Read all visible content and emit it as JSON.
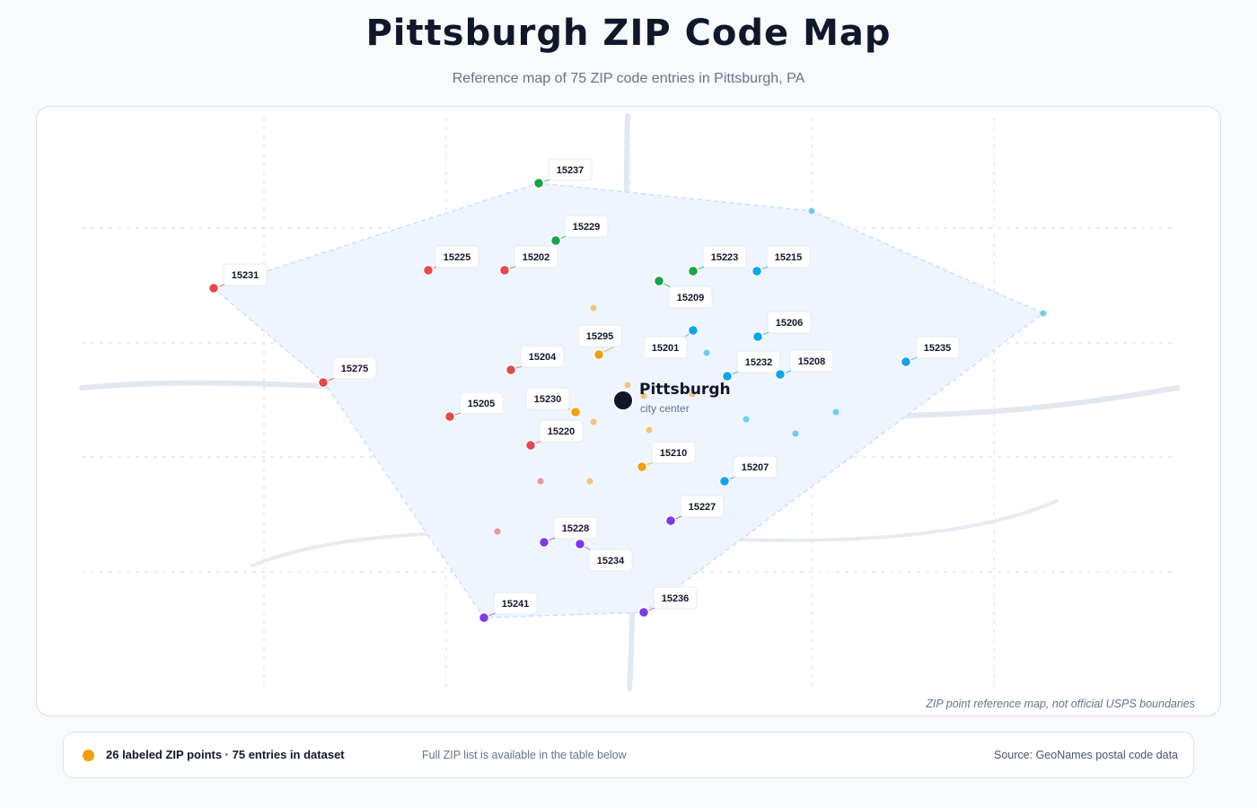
{
  "header": {
    "title": "Pittsburgh ZIP Code Map",
    "subtitle": "Reference map of 75 ZIP code entries in Pittsburgh, PA"
  },
  "map": {
    "disclaimer": "ZIP point reference map, not official USPS boundaries",
    "city": {
      "name": "Pittsburgh",
      "sublabel": "city center"
    },
    "colors": {
      "red": "#e5484d",
      "green": "#16a34a",
      "blue": "#0ea5e9",
      "orange": "#f59e0b",
      "purple": "#7c3aed",
      "region_fill": "#eef5fe",
      "region_stroke": "#bfdbfe",
      "road": "#e2e8f0",
      "grid": "#dbe1ea",
      "city_center": "#0f172a"
    },
    "labeled_points": [
      {
        "zip": "15237",
        "color": "green"
      },
      {
        "zip": "15229",
        "color": "green"
      },
      {
        "zip": "15225",
        "color": "red"
      },
      {
        "zip": "15202",
        "color": "red"
      },
      {
        "zip": "15223",
        "color": "green"
      },
      {
        "zip": "15215",
        "color": "blue"
      },
      {
        "zip": "15231",
        "color": "red"
      },
      {
        "zip": "15209",
        "color": "green"
      },
      {
        "zip": "15206",
        "color": "blue"
      },
      {
        "zip": "15295",
        "color": "orange"
      },
      {
        "zip": "15201",
        "color": "blue"
      },
      {
        "zip": "15235",
        "color": "blue"
      },
      {
        "zip": "15204",
        "color": "red"
      },
      {
        "zip": "15232",
        "color": "blue"
      },
      {
        "zip": "15208",
        "color": "blue"
      },
      {
        "zip": "15275",
        "color": "red"
      },
      {
        "zip": "15230",
        "color": "orange"
      },
      {
        "zip": "15205",
        "color": "red"
      },
      {
        "zip": "15220",
        "color": "red"
      },
      {
        "zip": "15210",
        "color": "orange"
      },
      {
        "zip": "15207",
        "color": "blue"
      },
      {
        "zip": "15227",
        "color": "purple"
      },
      {
        "zip": "15228",
        "color": "purple"
      },
      {
        "zip": "15234",
        "color": "purple"
      },
      {
        "zip": "15241",
        "color": "purple"
      },
      {
        "zip": "15236",
        "color": "purple"
      }
    ],
    "unlabeled_points": [
      {
        "color": "blue"
      },
      {
        "color": "blue"
      },
      {
        "color": "orange"
      },
      {
        "color": "blue"
      },
      {
        "color": "orange"
      },
      {
        "color": "orange"
      },
      {
        "color": "orange"
      },
      {
        "color": "blue"
      },
      {
        "color": "blue"
      },
      {
        "color": "orange"
      },
      {
        "color": "orange"
      },
      {
        "color": "blue"
      },
      {
        "color": "red"
      },
      {
        "color": "orange"
      },
      {
        "color": "red"
      }
    ]
  },
  "legend": {
    "main": "26 labeled ZIP points · 75 entries in dataset",
    "note": "Full ZIP list is available in the table below",
    "source": "Source: GeoNames postal code data",
    "dot_color": "#f59e0b"
  }
}
